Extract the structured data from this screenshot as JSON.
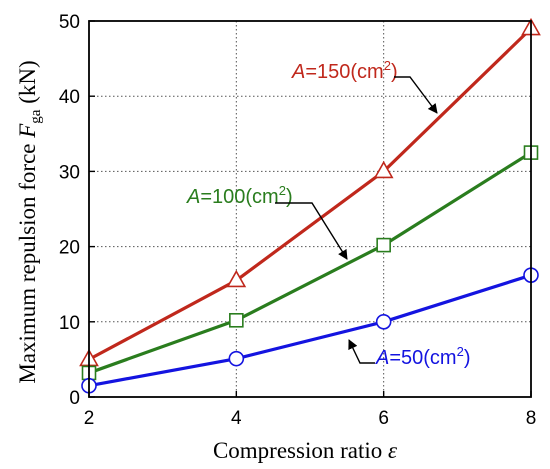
{
  "chart_data": {
    "type": "line",
    "title": "",
    "xlabel": "Compression ratio",
    "xlabel_symbol": "ε",
    "ylabel": "Maximum repulsion force",
    "ylabel_symbol": "F",
    "ylabel_subscript": "ga",
    "ylabel_unit": "(kN)",
    "xlim": [
      2,
      8
    ],
    "ylim": [
      0,
      50
    ],
    "xticks": [
      2,
      4,
      6,
      8
    ],
    "yticks": [
      0,
      10,
      20,
      30,
      40,
      50
    ],
    "grid": true,
    "grid_style": "dotted",
    "legend": "inline annotations with arrows",
    "x": [
      2,
      4,
      6,
      8
    ],
    "series": [
      {
        "name": "A=150(cm2)",
        "label_var": "A",
        "label_eq": "=150(cm",
        "label_sup": "2",
        "label_close": ")",
        "values": [
          5.0,
          15.5,
          30.0,
          49.0
        ],
        "color": "#c0281c",
        "marker": "triangle"
      },
      {
        "name": "A=100(cm2)",
        "label_var": "A",
        "label_eq": "=100(cm",
        "label_sup": "2",
        "label_close": ")",
        "values": [
          3.2,
          10.2,
          20.2,
          32.5
        ],
        "color": "#2a7d1e",
        "marker": "square"
      },
      {
        "name": "A=50(cm2)",
        "label_var": "A",
        "label_eq": "=50(cm",
        "label_sup": "2",
        "label_close": ")",
        "values": [
          1.5,
          5.1,
          10.0,
          16.2
        ],
        "color": "#1414e0",
        "marker": "circle"
      }
    ]
  }
}
